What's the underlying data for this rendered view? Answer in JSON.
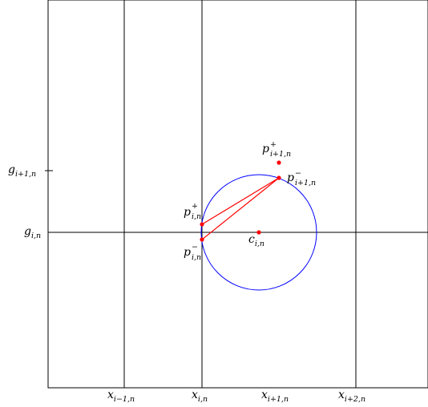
{
  "diagram": {
    "colors": {
      "frame": "#000000",
      "grid": "#000000",
      "circle": "#0000ff",
      "accent": "#ff0000"
    },
    "labels": {
      "x_im1": {
        "base": "x",
        "sub": "i−1,n"
      },
      "x_i": {
        "base": "x",
        "sub": "i,n"
      },
      "x_ip1": {
        "base": "x",
        "sub": "i+1,n"
      },
      "x_ip2": {
        "base": "x",
        "sub": "i+2,n"
      },
      "g_i": {
        "base": "g",
        "sub": "i,n"
      },
      "g_ip1": {
        "base": "g",
        "sub": "i+1,n"
      },
      "c_i": {
        "base": "c",
        "sub": "i,n"
      },
      "p_i_plus": {
        "base": "p",
        "sub": "i,n",
        "sup": "+"
      },
      "p_i_minus": {
        "base": "p",
        "sub": "i,n",
        "sup": "−"
      },
      "p_ip1_plus": {
        "base": "p",
        "sub": "i+1,n",
        "sup": "+"
      },
      "p_ip1_minus": {
        "base": "p",
        "sub": "i+1,n",
        "sup": "−"
      }
    }
  }
}
